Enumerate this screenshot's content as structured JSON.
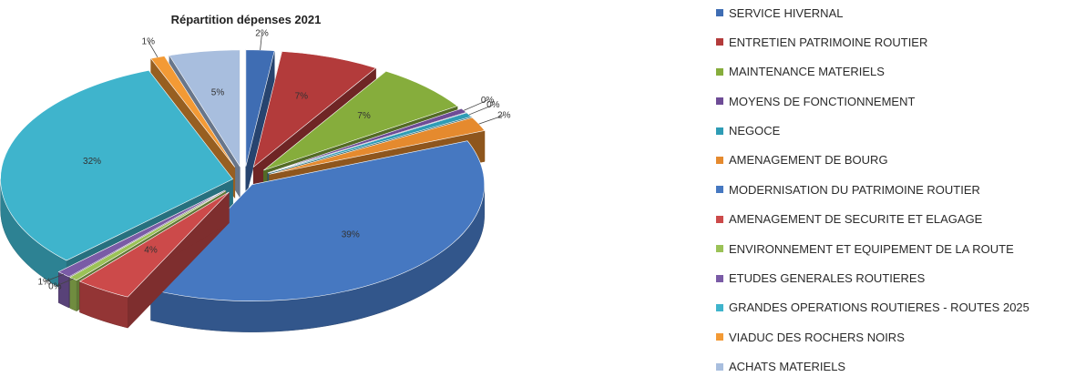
{
  "chart_data": {
    "type": "pie",
    "title": "Répartition dépenses 2021",
    "legend_position": "right",
    "exploded": true,
    "three_d": true,
    "slices": [
      {
        "name": "SERVICE HIVERNAL",
        "value": 2,
        "label": "2%",
        "color": "#3F6DB3"
      },
      {
        "name": "ENTRETIEN PATRIMOINE ROUTIER",
        "value": 7,
        "label": "7%",
        "color": "#B33B3B"
      },
      {
        "name": "MAINTENANCE MATERIELS",
        "value": 7,
        "label": "7%",
        "color": "#86AD3C"
      },
      {
        "name": "MOYENS DE FONCTIONNEMENT",
        "value": 0.3,
        "label": "0%",
        "color": "#6E4C96"
      },
      {
        "name": "NEGOCE",
        "value": 0.3,
        "label": "0%",
        "color": "#2E9CB5"
      },
      {
        "name": "AMENAGEMENT DE BOURG",
        "value": 2,
        "label": "2%",
        "color": "#E58A2E"
      },
      {
        "name": "MODERNISATION DU PATRIMOINE ROUTIER",
        "value": 39,
        "label": "39%",
        "color": "#4678C1"
      },
      {
        "name": "AMENAGEMENT DE SECURITE ET ELAGAGE",
        "value": 4,
        "label": "4%",
        "color": "#CC4A4A"
      },
      {
        "name": "ENVIRONNEMENT ET EQUIPEMENT DE LA ROUTE",
        "value": 0.4,
        "label": "0%",
        "color": "#9BC257"
      },
      {
        "name": "ETUDES GENERALES ROUTIERES",
        "value": 1,
        "label": "1%",
        "color": "#7A5BA6"
      },
      {
        "name": "GRANDES OPERATIONS ROUTIERES - ROUTES 2025",
        "value": 32,
        "label": "32%",
        "color": "#3FB4CC"
      },
      {
        "name": "VIADUC DES ROCHERS NOIRS",
        "value": 1,
        "label": "1%",
        "color": "#F39A35"
      },
      {
        "name": "ACHATS MATERIELS",
        "value": 5,
        "label": "5%",
        "color": "#A8BEDE"
      }
    ]
  }
}
